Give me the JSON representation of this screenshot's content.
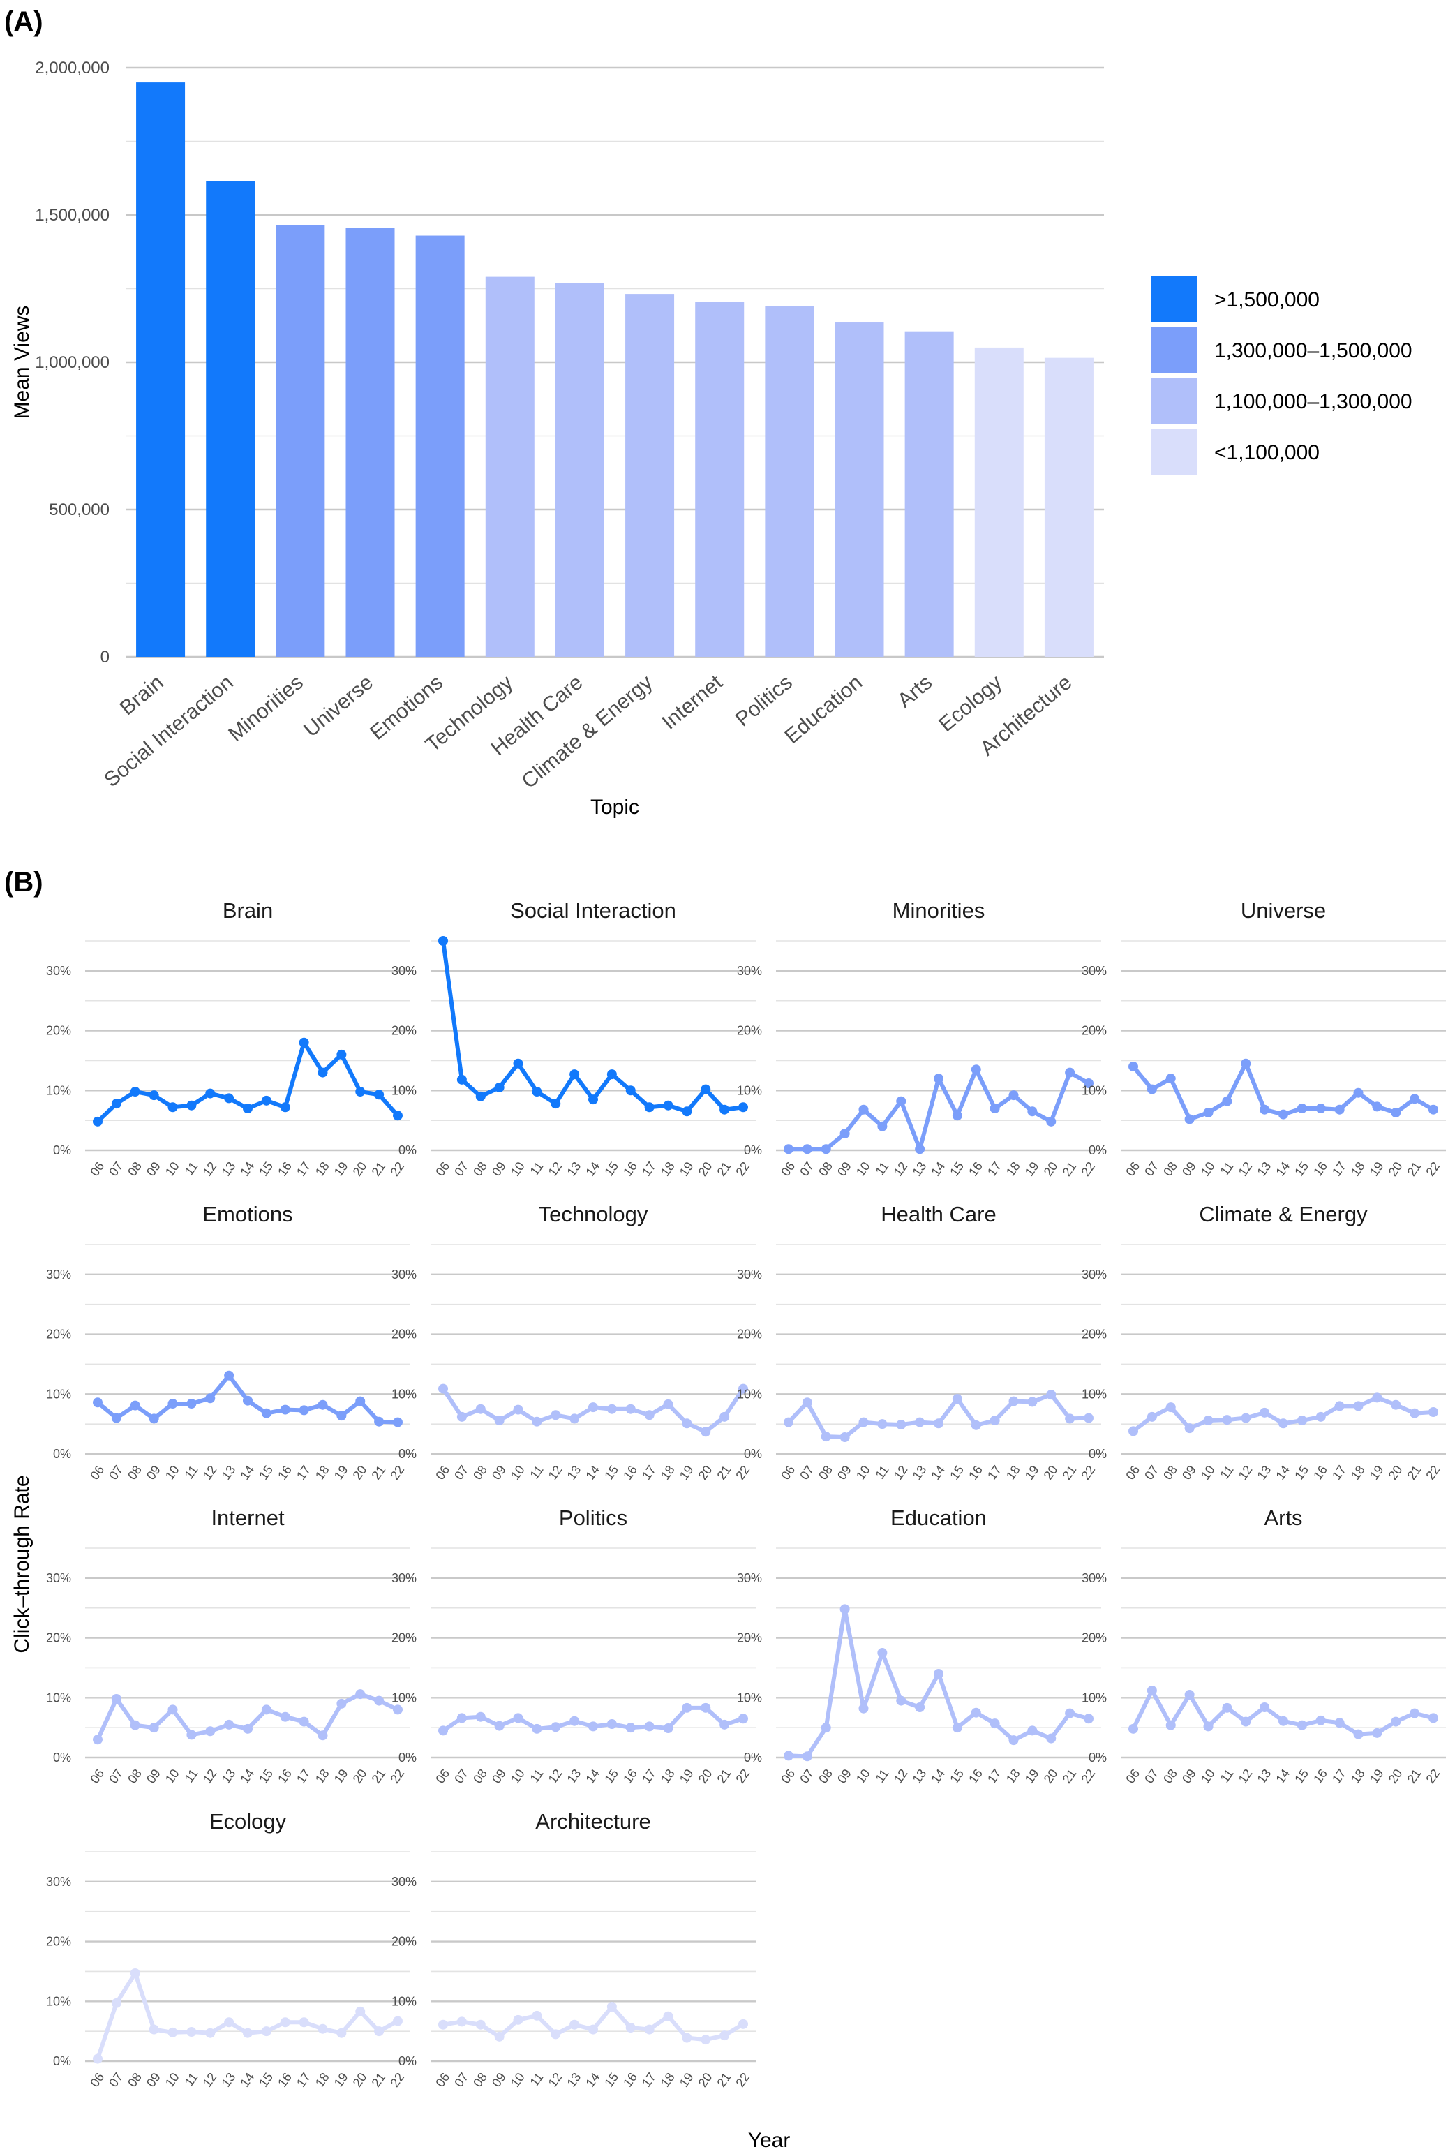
{
  "panel_a_label": "(A)",
  "panel_b_label": "(B)",
  "chart_data": [
    {
      "type": "bar",
      "ylabel": "Mean Views",
      "xlabel": "Topic",
      "ylim": [
        0,
        2000000
      ],
      "yticks": [
        0,
        500000,
        1000000,
        1500000,
        2000000
      ],
      "ytick_labels": [
        "0",
        "500,000",
        "1,000,000",
        "1,500,000",
        "2,000,000"
      ],
      "grid": true,
      "categories": [
        "Brain",
        "Social Interaction",
        "Minorities",
        "Universe",
        "Emotions",
        "Technology",
        "Health Care",
        "Climate & Energy",
        "Internet",
        "Politics",
        "Education",
        "Arts",
        "Ecology",
        "Architecture"
      ],
      "values": [
        1950000,
        1615000,
        1465000,
        1455000,
        1430000,
        1290000,
        1270000,
        1232000,
        1205000,
        1190000,
        1135000,
        1105000,
        1050000,
        1015000
      ],
      "tiers": [
        0,
        0,
        1,
        1,
        1,
        2,
        2,
        2,
        2,
        2,
        2,
        2,
        3,
        3
      ],
      "legend": {
        "position": "right",
        "items": [
          {
            "label": ">1,500,000",
            "color": "#1279fb"
          },
          {
            "label": "1,300,000–1,500,000",
            "color": "#7b9efa"
          },
          {
            "label": "1,100,000–1,300,000",
            "color": "#b0bffa"
          },
          {
            "label": "<1,100,000",
            "color": "#d9defb"
          }
        ]
      }
    },
    {
      "type": "line",
      "facets": true,
      "xlabel": "Year",
      "ylabel": "Click–through Rate",
      "ylim": [
        0,
        35
      ],
      "yticks": [
        0,
        10,
        20,
        30
      ],
      "ytick_labels": [
        "0%",
        "10%",
        "20%",
        "30%"
      ],
      "x": [
        "06",
        "07",
        "08",
        "09",
        "10",
        "11",
        "12",
        "13",
        "14",
        "15",
        "16",
        "17",
        "18",
        "19",
        "20",
        "21",
        "22"
      ],
      "series": [
        {
          "name": "Brain",
          "tier": 0,
          "values": [
            4.8,
            7.8,
            9.8,
            9.2,
            7.2,
            7.5,
            9.5,
            8.7,
            7.0,
            8.3,
            7.2,
            18.0,
            13.0,
            16.0,
            9.8,
            9.3,
            5.8
          ]
        },
        {
          "name": "Social Interaction",
          "tier": 0,
          "values": [
            35.0,
            11.8,
            9.0,
            10.5,
            14.5,
            9.8,
            7.8,
            12.7,
            8.5,
            12.7,
            10.0,
            7.2,
            7.5,
            6.5,
            10.2,
            6.8,
            7.2
          ]
        },
        {
          "name": "Minorities",
          "tier": 1,
          "values": [
            0.2,
            0.2,
            0.2,
            2.8,
            6.8,
            4.0,
            8.2,
            0.2,
            12.0,
            5.8,
            13.5,
            7.0,
            9.2,
            6.5,
            4.8,
            13.0,
            11.2
          ]
        },
        {
          "name": "Universe",
          "tier": 1,
          "values": [
            14.0,
            10.2,
            12.0,
            5.2,
            6.3,
            8.2,
            14.5,
            6.8,
            6.0,
            7.0,
            7.0,
            6.8,
            9.6,
            7.3,
            6.3,
            8.6,
            6.8
          ]
        },
        {
          "name": "Emotions",
          "tier": 1,
          "values": [
            8.6,
            6.0,
            8.1,
            5.9,
            8.4,
            8.4,
            9.3,
            13.1,
            8.9,
            6.8,
            7.4,
            7.3,
            8.2,
            6.4,
            8.8,
            5.4,
            5.3
          ]
        },
        {
          "name": "Technology",
          "tier": 2,
          "values": [
            10.9,
            6.2,
            7.5,
            5.6,
            7.4,
            5.4,
            6.5,
            5.9,
            7.8,
            7.5,
            7.5,
            6.5,
            8.3,
            5.1,
            3.7,
            6.2,
            10.9
          ]
        },
        {
          "name": "Health Care",
          "tier": 2,
          "values": [
            5.3,
            8.6,
            2.9,
            2.8,
            5.3,
            5.0,
            4.9,
            5.3,
            5.1,
            9.2,
            4.8,
            5.6,
            8.8,
            8.7,
            9.9,
            5.9,
            6.0
          ]
        },
        {
          "name": "Climate & Energy",
          "tier": 2,
          "values": [
            3.8,
            6.2,
            7.8,
            4.3,
            5.6,
            5.7,
            6.0,
            6.9,
            5.1,
            5.6,
            6.2,
            8.0,
            8.0,
            9.4,
            8.2,
            6.8,
            7.0
          ]
        },
        {
          "name": "Internet",
          "tier": 2,
          "values": [
            3.0,
            9.8,
            5.4,
            5.0,
            8.0,
            3.8,
            4.4,
            5.5,
            4.8,
            8.0,
            6.8,
            6.0,
            3.7,
            9.0,
            10.6,
            9.5,
            8.0
          ]
        },
        {
          "name": "Politics",
          "tier": 2,
          "values": [
            4.5,
            6.6,
            6.8,
            5.3,
            6.6,
            4.8,
            5.1,
            6.1,
            5.2,
            5.6,
            5.0,
            5.2,
            4.9,
            8.3,
            8.3,
            5.5,
            6.5
          ]
        },
        {
          "name": "Education",
          "tier": 2,
          "values": [
            0.3,
            0.2,
            5.0,
            24.8,
            8.2,
            17.5,
            9.5,
            8.4,
            14.0,
            5.0,
            7.5,
            5.7,
            2.9,
            4.5,
            3.2,
            7.4,
            6.5
          ]
        },
        {
          "name": "Arts",
          "tier": 2,
          "values": [
            4.8,
            11.2,
            5.4,
            10.5,
            5.2,
            8.3,
            6.0,
            8.4,
            6.1,
            5.4,
            6.2,
            5.8,
            3.9,
            4.1,
            6.0,
            7.4,
            6.6
          ]
        },
        {
          "name": "Ecology",
          "tier": 3,
          "values": [
            0.4,
            9.7,
            14.7,
            5.3,
            4.8,
            4.9,
            4.7,
            6.5,
            4.7,
            5.0,
            6.5,
            6.5,
            5.4,
            4.7,
            8.3,
            5.0,
            6.7
          ]
        },
        {
          "name": "Architecture",
          "tier": 3,
          "values": [
            6.1,
            6.6,
            6.1,
            4.1,
            6.9,
            7.6,
            4.5,
            6.1,
            5.3,
            9.1,
            5.6,
            5.3,
            7.5,
            3.9,
            3.6,
            4.3,
            6.2
          ]
        }
      ]
    }
  ]
}
